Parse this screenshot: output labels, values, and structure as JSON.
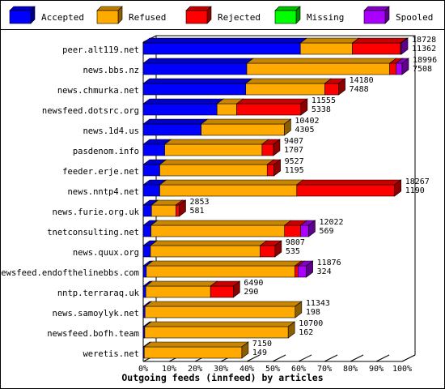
{
  "chart_data": {
    "type": "bar",
    "orientation": "horizontal",
    "stacked": true,
    "percent_scale": true,
    "xlabel": "Outgoing feeds (innfeed) by articles",
    "xlim": [
      0,
      100
    ],
    "xtick_labels": [
      "0%",
      "10%",
      "20%",
      "30%",
      "40%",
      "50%",
      "60%",
      "70%",
      "80%",
      "90%",
      "100%"
    ],
    "legend_position": "top",
    "categories": [
      "peer.alt119.net",
      "news.bbs.nz",
      "news.chmurka.net",
      "newsfeed.dotsrc.org",
      "news.1d4.us",
      "pasdenom.info",
      "feeder.erje.net",
      "news.nntp4.net",
      "news.furie.org.uk",
      "tnetconsulting.net",
      "news.quux.org",
      "newsfeed.endofthelinebbs.com",
      "nntp.terraraq.uk",
      "news.samoylyk.net",
      "newsfeed.bofh.team",
      "weretis.net"
    ],
    "series": [
      {
        "name": "Accepted",
        "color": "#0000ff",
        "values": [
          60.7,
          40.0,
          39.6,
          28.5,
          22.4,
          8.3,
          6.4,
          6.4,
          3.2,
          3.0,
          2.8,
          1.2,
          1.0,
          0.7,
          0.6,
          0.4
        ]
      },
      {
        "name": "Refused",
        "color": "#ffaa00",
        "values": [
          20.1,
          55.2,
          30.5,
          7.6,
          32.1,
          37.6,
          41.5,
          52.9,
          9.4,
          51.6,
          42.4,
          57.4,
          25.0,
          58.0,
          55.4,
          37.7
        ]
      },
      {
        "name": "Rejected",
        "color": "#ff0000",
        "values": [
          18.6,
          2.5,
          5.4,
          24.8,
          0.0,
          4.4,
          2.6,
          37.8,
          1.3,
          6.2,
          5.7,
          1.2,
          8.8,
          0.0,
          0.0,
          0.0
        ]
      },
      {
        "name": "Missing",
        "color": "#00ff00",
        "values": [
          0,
          0,
          0,
          0,
          0,
          0,
          0,
          0,
          0,
          0,
          0,
          0,
          0,
          0,
          0,
          0
        ]
      },
      {
        "name": "Spooled",
        "color": "#aa00ff",
        "values": [
          0.3,
          2.3,
          0.0,
          0.0,
          0.0,
          0.0,
          0.0,
          0.0,
          0.0,
          3.1,
          0.0,
          3.2,
          0.0,
          0.0,
          0.0,
          0.0
        ]
      }
    ],
    "offered_labels": [
      "18728",
      "18996",
      "14180",
      "11555",
      "10402",
      "9407",
      "9527",
      "18267",
      "2853",
      "12022",
      "9807",
      "11876",
      "6490",
      "11343",
      "10700",
      "7150"
    ],
    "accepted_count_labels": [
      "11362",
      "7508",
      "7488",
      "5338",
      "4305",
      "1707",
      "1195",
      "1190",
      "581",
      "569",
      "535",
      "324",
      "290",
      "198",
      "162",
      "149"
    ]
  }
}
